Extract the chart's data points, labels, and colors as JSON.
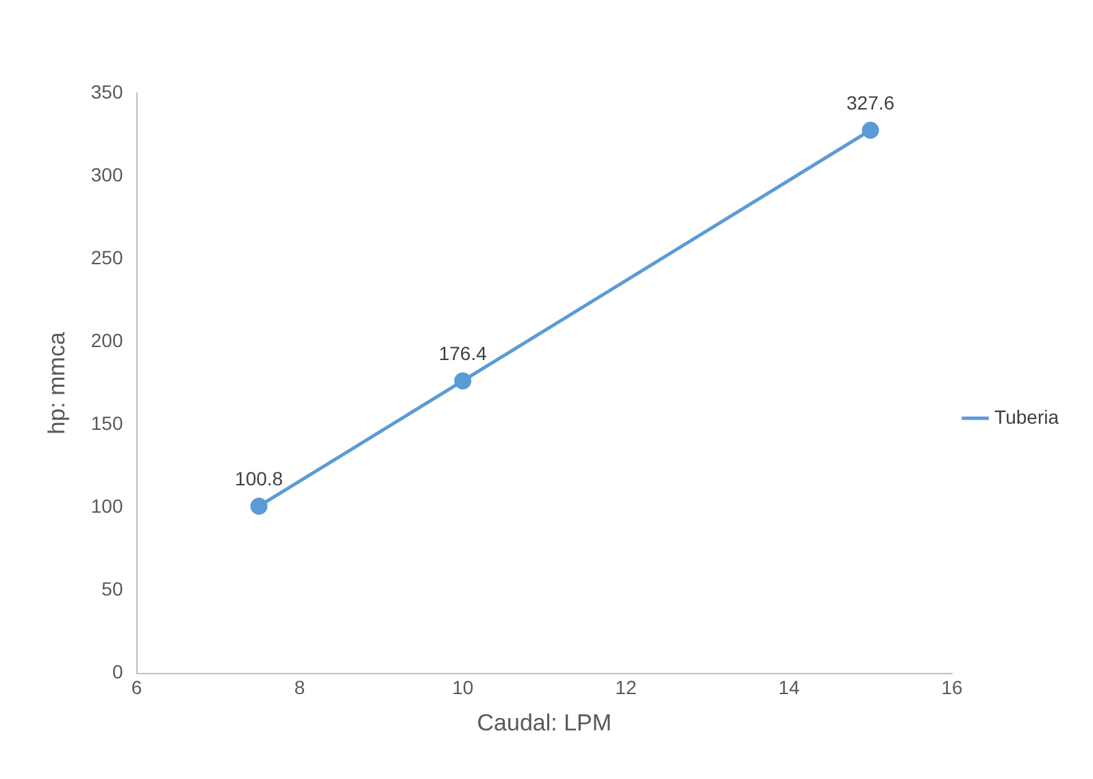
{
  "chart_data": {
    "type": "line",
    "xlabel": "Caudal: LPM",
    "ylabel": "hp: mmca",
    "x": [
      7.5,
      10,
      15
    ],
    "series": [
      {
        "name": "Tuberia",
        "color": "#5b9bd5",
        "values": [
          100.8,
          176.4,
          327.6
        ]
      }
    ],
    "xlim": [
      6,
      16
    ],
    "xticks": [
      6,
      8,
      10,
      12,
      14,
      16
    ],
    "ylim": [
      0,
      350
    ],
    "yticks": [
      0,
      50,
      100,
      150,
      200,
      250,
      300,
      350
    ],
    "grid": false,
    "legend": "right",
    "marker": "circle",
    "line_style": "solid",
    "data_labels": true
  }
}
